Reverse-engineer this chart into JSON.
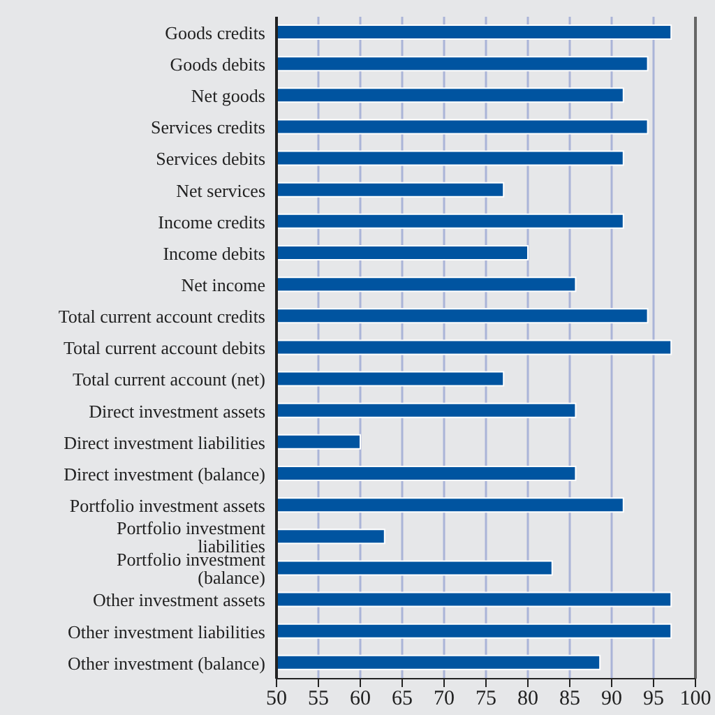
{
  "chart_data": {
    "type": "bar",
    "orientation": "horizontal",
    "categories": [
      "Goods credits",
      "Goods debits",
      "Net goods",
      "Services credits",
      "Services debits",
      "Net services",
      "Income credits",
      "Income debits",
      "Net income",
      "Total current account credits",
      "Total current account debits",
      "Total current account (net)",
      "Direct investment assets",
      "Direct investment liabilities",
      "Direct investment (balance)",
      "Portfolio investment assets",
      "Portfolio investment liabilities",
      "Portfolio investment (balance)",
      "Other investment assets",
      "Other investment liabilities",
      "Other investment (balance)"
    ],
    "values": [
      97.1,
      94.3,
      91.4,
      94.3,
      91.4,
      77.1,
      91.4,
      80,
      85.7,
      94.3,
      97.1,
      77.1,
      85.7,
      60,
      85.7,
      91.4,
      62.9,
      82.9,
      97.1,
      97.1,
      88.6
    ],
    "color": "#0054a0",
    "xlim": [
      50,
      100
    ],
    "xticks": [
      50,
      55,
      60,
      65,
      70,
      75,
      80,
      85,
      90,
      95,
      100
    ],
    "grid": "x"
  }
}
